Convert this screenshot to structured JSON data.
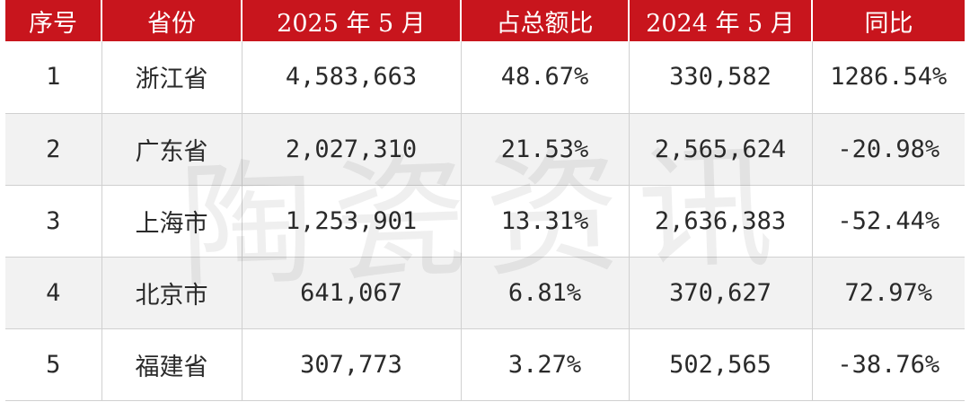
{
  "table": {
    "headers": [
      "序号",
      "省份",
      "2025 年 5 月",
      "占总额比",
      "2024 年 5 月",
      "同比"
    ],
    "rows": [
      [
        "1",
        "浙江省",
        "4,583,663",
        "48.67%",
        "330,582",
        "1286.54%"
      ],
      [
        "2",
        "广东省",
        "2,027,310",
        "21.53%",
        "2,565,624",
        "-20.98%"
      ],
      [
        "3",
        "上海市",
        "1,253,901",
        "13.31%",
        "2,636,383",
        "-52.44%"
      ],
      [
        "4",
        "北京市",
        "641,067",
        "6.81%",
        "370,627",
        "72.97%"
      ],
      [
        "5",
        "福建省",
        "307,773",
        "3.27%",
        "502,565",
        "-38.76%"
      ]
    ]
  },
  "watermark": "陶瓷资讯",
  "colors": {
    "header_bg": "#c8151d",
    "header_text": "#ffffff",
    "stripe_bg": "#f2f2f2"
  }
}
